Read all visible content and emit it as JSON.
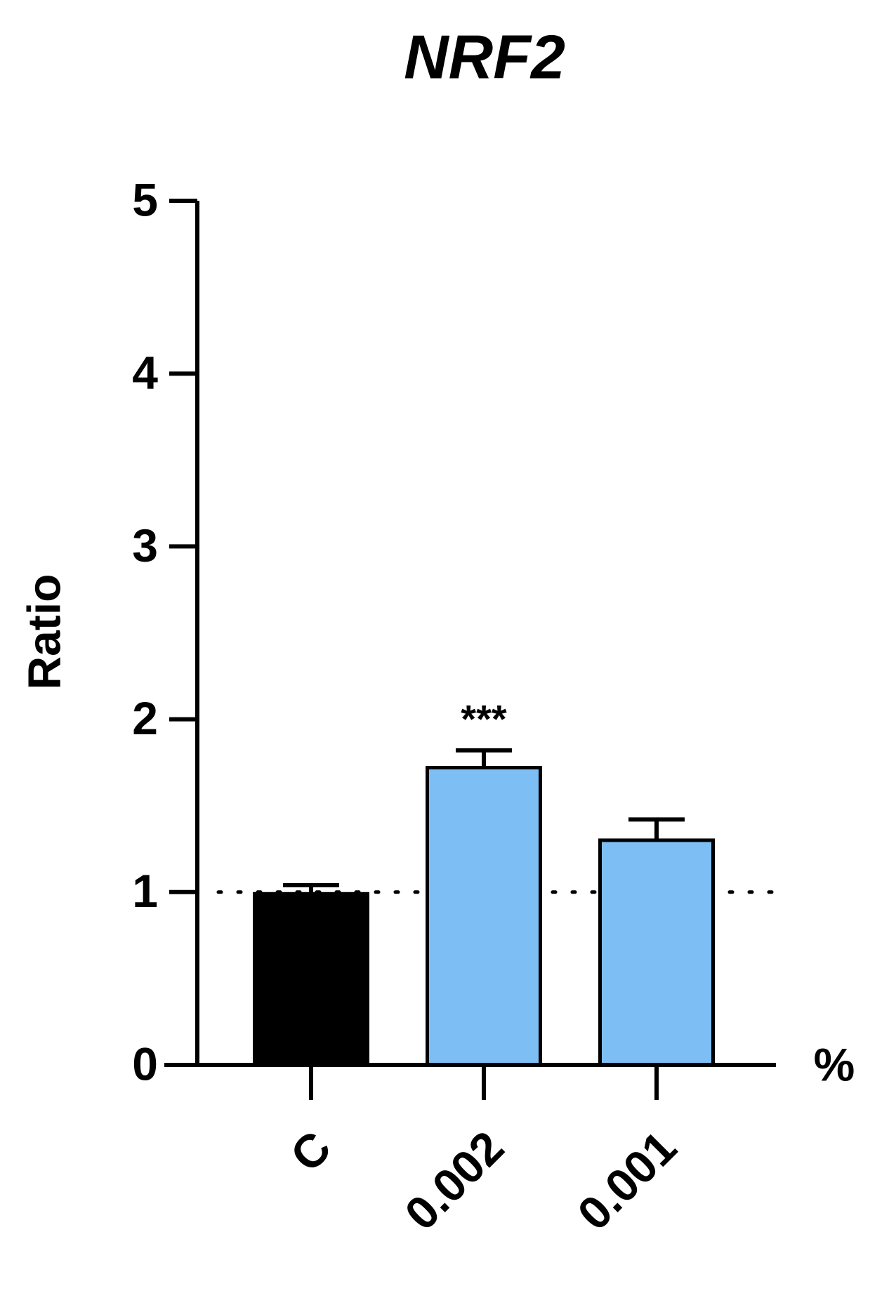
{
  "chart_data": {
    "type": "bar",
    "title": "NRF2",
    "y_label": "Ratio",
    "x_label": "%",
    "categories": [
      "C",
      "0.002",
      "0.001"
    ],
    "values": [
      0.99,
      1.72,
      1.3
    ],
    "errors": [
      0.05,
      0.1,
      0.12
    ],
    "colors": [
      "#000000",
      "#7dbff5",
      "#7dbff5"
    ],
    "annotations": [
      {
        "category": "0.002",
        "text": "***"
      }
    ],
    "reference_line": 1,
    "ylim": [
      0,
      5
    ],
    "yticks": [
      0,
      1,
      2,
      3,
      4,
      5
    ],
    "grid": false
  }
}
